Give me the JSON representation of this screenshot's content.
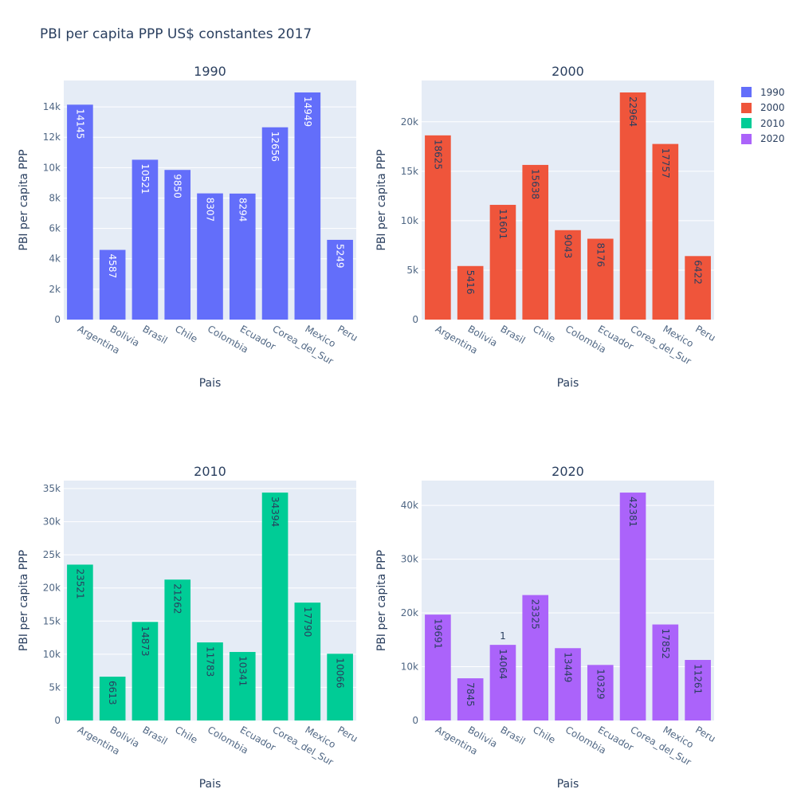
{
  "title": "PBI per capita PPP US$ constantes 2017",
  "legend": [
    {
      "label": "1990",
      "color": "#636efa"
    },
    {
      "label": "2000",
      "color": "#EF553B"
    },
    {
      "label": "2010",
      "color": "#00cc96"
    },
    {
      "label": "2020",
      "color": "#ab63fa"
    }
  ],
  "chart_data": [
    {
      "type": "bar",
      "title": "1990",
      "xlabel": "Pais",
      "ylabel": "PBI per capita PPP",
      "color": "#636efa",
      "label_color": "#ffffff",
      "categories": [
        "Argentina",
        "Bolivia",
        "Brasil",
        "Chile",
        "Colombia",
        "Ecuador",
        "Corea_del_Sur",
        "Mexico",
        "Peru"
      ],
      "values": [
        14145,
        4587,
        10521,
        9850,
        8307,
        8294,
        12656,
        14949,
        5249
      ],
      "ylim": [
        0,
        15736
      ],
      "ticks": [
        0,
        2000,
        4000,
        6000,
        8000,
        10000,
        12000,
        14000
      ],
      "tick_labels": [
        "0",
        "2k",
        "4k",
        "6k",
        "8k",
        "10k",
        "12k",
        "14k"
      ]
    },
    {
      "type": "bar",
      "title": "2000",
      "xlabel": "Pais",
      "ylabel": "PBI per capita PPP",
      "color": "#EF553B",
      "label_color": "#2a3f5f",
      "categories": [
        "Argentina",
        "Bolivia",
        "Brasil",
        "Chile",
        "Colombia",
        "Ecuador",
        "Corea_del_Sur",
        "Mexico",
        "Peru"
      ],
      "values": [
        18625,
        5416,
        11601,
        15638,
        9043,
        8176,
        22964,
        17757,
        6422
      ],
      "ylim": [
        0,
        24173
      ],
      "ticks": [
        0,
        5000,
        10000,
        15000,
        20000
      ],
      "tick_labels": [
        "0",
        "5k",
        "10k",
        "15k",
        "20k"
      ]
    },
    {
      "type": "bar",
      "title": "2010",
      "xlabel": "Pais",
      "ylabel": "PBI per capita PPP",
      "color": "#00cc96",
      "label_color": "#2a3f5f",
      "categories": [
        "Argentina",
        "Bolivia",
        "Brasil",
        "Chile",
        "Colombia",
        "Ecuador",
        "Corea_del_Sur",
        "Mexico",
        "Peru"
      ],
      "values": [
        23521,
        6613,
        14873,
        21262,
        11783,
        10341,
        34394,
        17790,
        10066
      ],
      "ylim": [
        0,
        36204
      ],
      "ticks": [
        0,
        5000,
        10000,
        15000,
        20000,
        25000,
        30000,
        35000
      ],
      "tick_labels": [
        "0",
        "5k",
        "10k",
        "15k",
        "20k",
        "25k",
        "30k",
        "35k"
      ]
    },
    {
      "type": "bar",
      "title": "2020",
      "xlabel": "Pais",
      "ylabel": "PBI per capita PPP",
      "color": "#ab63fa",
      "label_color": "#2a3f5f",
      "categories": [
        "Argentina",
        "Bolivia",
        "Brasil",
        "Chile",
        "Colombia",
        "Ecuador",
        "Corea_del_Sur",
        "Mexico",
        "Peru"
      ],
      "values": [
        19691,
        7845,
        14064,
        23325,
        13449,
        10329,
        42381,
        17852,
        11261
      ],
      "ylim": [
        0,
        44611
      ],
      "ticks": [
        0,
        10000,
        20000,
        30000,
        40000
      ],
      "tick_labels": [
        "0",
        "10k",
        "20k",
        "30k",
        "40k"
      ],
      "annotations": [
        {
          "category": "Brasil",
          "text": "1"
        }
      ]
    }
  ]
}
